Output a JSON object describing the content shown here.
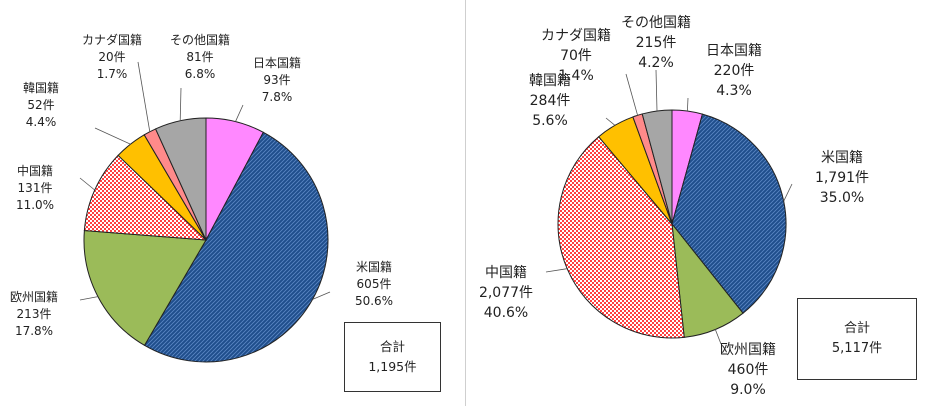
{
  "chart_data": [
    {
      "type": "pie",
      "total_label": "合計",
      "total_value": "1,195件",
      "slices": [
        {
          "name": "日本国籍",
          "count": "93件",
          "pct": "7.8%",
          "value": 93,
          "color": "#ff88ff",
          "pattern": "solid"
        },
        {
          "name": "米国籍",
          "count": "605件",
          "pct": "50.6%",
          "value": 605,
          "color": "#1f4e8c",
          "pattern": "diag"
        },
        {
          "name": "欧州国籍",
          "count": "213件",
          "pct": "17.8%",
          "value": 213,
          "color": "#9bbb59",
          "pattern": "solid"
        },
        {
          "name": "中国籍",
          "count": "131件",
          "pct": "11.0%",
          "value": 131,
          "color": "#ff5050",
          "pattern": "check"
        },
        {
          "name": "韓国籍",
          "count": "52件",
          "pct": "4.4%",
          "value": 52,
          "color": "#ffc000",
          "pattern": "solid"
        },
        {
          "name": "カナダ国籍",
          "count": "20件",
          "pct": "1.7%",
          "value": 20,
          "color": "#ff8a8a",
          "pattern": "solid"
        },
        {
          "name": "その他国籍",
          "count": "81件",
          "pct": "6.8%",
          "value": 81,
          "color": "#a6a6a6",
          "pattern": "solid"
        }
      ]
    },
    {
      "type": "pie",
      "total_label": "合計",
      "total_value": "5,117件",
      "slices": [
        {
          "name": "日本国籍",
          "count": "220件",
          "pct": "4.3%",
          "value": 220,
          "color": "#ff88ff",
          "pattern": "solid"
        },
        {
          "name": "米国籍",
          "count": "1,791件",
          "pct": "35.0%",
          "value": 1791,
          "color": "#1f4e8c",
          "pattern": "diag"
        },
        {
          "name": "欧州国籍",
          "count": "460件",
          "pct": "9.0%",
          "value": 460,
          "color": "#9bbb59",
          "pattern": "solid"
        },
        {
          "name": "中国籍",
          "count": "2,077件",
          "pct": "40.6%",
          "value": 2077,
          "color": "#ff5050",
          "pattern": "check"
        },
        {
          "name": "韓国籍",
          "count": "284件",
          "pct": "5.6%",
          "value": 284,
          "color": "#ffc000",
          "pattern": "solid"
        },
        {
          "name": "カナダ国籍",
          "count": "70件",
          "pct": "1.4%",
          "value": 70,
          "color": "#ff8a8a",
          "pattern": "solid"
        },
        {
          "name": "その他国籍",
          "count": "215件",
          "pct": "4.2%",
          "value": 215,
          "color": "#a6a6a6",
          "pattern": "solid"
        }
      ]
    }
  ]
}
